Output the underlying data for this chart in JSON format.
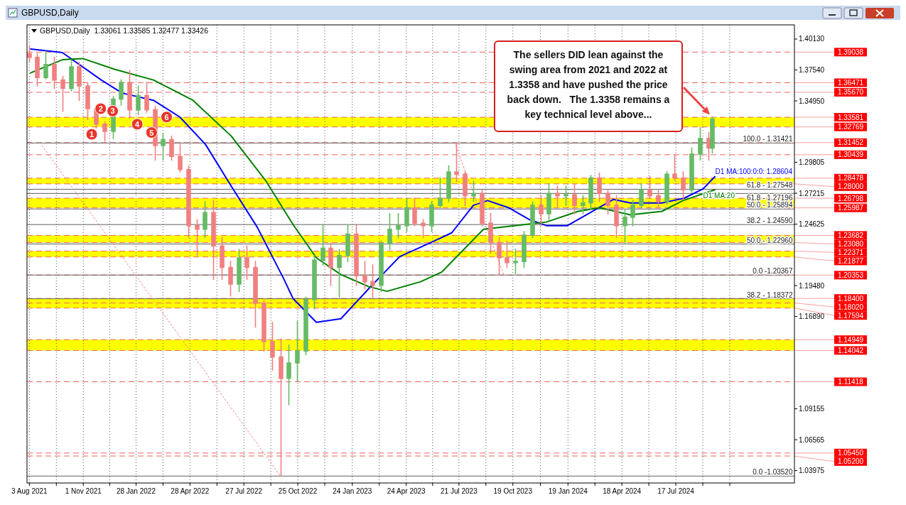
{
  "chart_data": {
    "type": "candlestick",
    "title": "GBPUSD,Daily",
    "subtitle": "GBPUSD,Daily  1.33061 1.33585 1.32477 1.33426",
    "x": [
      "2021-08-02",
      "2021-08-16",
      "2021-08-30",
      "2021-09-13",
      "2021-09-27",
      "2021-10-11",
      "2021-10-25",
      "2021-11-08",
      "2021-11-22",
      "2021-12-06",
      "2021-12-20",
      "2022-01-03",
      "2022-01-17",
      "2022-01-31",
      "2022-02-14",
      "2022-02-28",
      "2022-03-14",
      "2022-03-28",
      "2022-04-11",
      "2022-04-25",
      "2022-05-09",
      "2022-05-23",
      "2022-06-06",
      "2022-06-20",
      "2022-07-04",
      "2022-07-18",
      "2022-08-01",
      "2022-08-15",
      "2022-08-29",
      "2022-09-12",
      "2022-09-26",
      "2022-10-10",
      "2022-10-24",
      "2022-11-07",
      "2022-11-21",
      "2022-12-05",
      "2022-12-19",
      "2023-01-02",
      "2023-01-16",
      "2023-01-30",
      "2023-02-13",
      "2023-02-27",
      "2023-03-13",
      "2023-03-27",
      "2023-04-10",
      "2023-04-24",
      "2023-05-08",
      "2023-05-22",
      "2023-06-05",
      "2023-06-19",
      "2023-07-03",
      "2023-07-17",
      "2023-07-31",
      "2023-08-14",
      "2023-08-28",
      "2023-09-11",
      "2023-09-25",
      "2023-10-09",
      "2023-10-23",
      "2023-11-06",
      "2023-11-20",
      "2023-12-04",
      "2023-12-18",
      "2024-01-01",
      "2024-01-15",
      "2024-01-29",
      "2024-02-12",
      "2024-02-26",
      "2024-03-11",
      "2024-03-25",
      "2024-04-08",
      "2024-04-22",
      "2024-05-06",
      "2024-05-20",
      "2024-06-03",
      "2024-06-17",
      "2024-07-01",
      "2024-07-15",
      "2024-07-29",
      "2024-08-12",
      "2024-08-26",
      "2024-09-09",
      "2024-09-16"
    ],
    "ohlc": [
      [
        1.389,
        1.395,
        1.382,
        1.386
      ],
      [
        1.386,
        1.389,
        1.362,
        1.369
      ],
      [
        1.369,
        1.391,
        1.368,
        1.38
      ],
      [
        1.38,
        1.386,
        1.36,
        1.367
      ],
      [
        1.367,
        1.37,
        1.341,
        1.36
      ],
      [
        1.36,
        1.383,
        1.358,
        1.378
      ],
      [
        1.378,
        1.382,
        1.35,
        1.362
      ],
      [
        1.362,
        1.364,
        1.334,
        1.343
      ],
      [
        1.343,
        1.345,
        1.327,
        1.33
      ],
      [
        1.33,
        1.332,
        1.316,
        1.324
      ],
      [
        1.324,
        1.353,
        1.318,
        1.351
      ],
      [
        1.351,
        1.367,
        1.346,
        1.365
      ],
      [
        1.365,
        1.375,
        1.335,
        1.342
      ],
      [
        1.342,
        1.362,
        1.338,
        1.354
      ],
      [
        1.354,
        1.365,
        1.34,
        1.342
      ],
      [
        1.342,
        1.345,
        1.3,
        1.312
      ],
      [
        1.312,
        1.322,
        1.3,
        1.317
      ],
      [
        1.317,
        1.32,
        1.3,
        1.303
      ],
      [
        1.303,
        1.313,
        1.29,
        1.292
      ],
      [
        1.292,
        1.295,
        1.235,
        1.245
      ],
      [
        1.245,
        1.25,
        1.22,
        1.242
      ],
      [
        1.242,
        1.265,
        1.235,
        1.256
      ],
      [
        1.256,
        1.266,
        1.2,
        1.228
      ],
      [
        1.228,
        1.235,
        1.2,
        1.21
      ],
      [
        1.21,
        1.215,
        1.186,
        1.196
      ],
      [
        1.196,
        1.225,
        1.19,
        1.218
      ],
      [
        1.218,
        1.228,
        1.2,
        1.21
      ],
      [
        1.21,
        1.215,
        1.16,
        1.18
      ],
      [
        1.18,
        1.182,
        1.14,
        1.148
      ],
      [
        1.148,
        1.164,
        1.124,
        1.135
      ],
      [
        1.135,
        1.15,
        1.0352,
        1.117
      ],
      [
        1.117,
        1.145,
        1.095,
        1.13
      ],
      [
        1.13,
        1.165,
        1.115,
        1.14
      ],
      [
        1.14,
        1.185,
        1.137,
        1.183
      ],
      [
        1.183,
        1.22,
        1.175,
        1.216
      ],
      [
        1.216,
        1.245,
        1.212,
        1.226
      ],
      [
        1.226,
        1.23,
        1.195,
        1.21
      ],
      [
        1.21,
        1.225,
        1.185,
        1.22
      ],
      [
        1.22,
        1.245,
        1.215,
        1.238
      ],
      [
        1.238,
        1.245,
        1.195,
        1.203
      ],
      [
        1.203,
        1.215,
        1.192,
        1.198
      ],
      [
        1.198,
        1.212,
        1.185,
        1.195
      ],
      [
        1.195,
        1.232,
        1.19,
        1.23
      ],
      [
        1.23,
        1.255,
        1.225,
        1.242
      ],
      [
        1.242,
        1.255,
        1.235,
        1.245
      ],
      [
        1.245,
        1.268,
        1.24,
        1.26
      ],
      [
        1.26,
        1.268,
        1.245,
        1.247
      ],
      [
        1.247,
        1.25,
        1.235,
        1.245
      ],
      [
        1.245,
        1.265,
        1.24,
        1.262
      ],
      [
        1.262,
        1.285,
        1.26,
        1.268
      ],
      [
        1.268,
        1.295,
        1.265,
        1.29
      ],
      [
        1.29,
        1.3142,
        1.282,
        1.288
      ],
      [
        1.288,
        1.29,
        1.262,
        1.27
      ],
      [
        1.27,
        1.282,
        1.265,
        1.272
      ],
      [
        1.272,
        1.275,
        1.245,
        1.247
      ],
      [
        1.247,
        1.255,
        1.222,
        1.231
      ],
      [
        1.231,
        1.235,
        1.2037,
        1.218
      ],
      [
        1.218,
        1.232,
        1.21,
        1.214
      ],
      [
        1.214,
        1.225,
        1.205,
        1.215
      ],
      [
        1.215,
        1.24,
        1.21,
        1.237
      ],
      [
        1.237,
        1.265,
        1.235,
        1.262
      ],
      [
        1.262,
        1.27,
        1.245,
        1.255
      ],
      [
        1.255,
        1.28,
        1.25,
        1.272
      ],
      [
        1.272,
        1.278,
        1.261,
        1.27
      ],
      [
        1.27,
        1.278,
        1.262,
        1.271
      ],
      [
        1.271,
        1.28,
        1.255,
        1.262
      ],
      [
        1.262,
        1.27,
        1.255,
        1.264
      ],
      [
        1.264,
        1.287,
        1.259,
        1.285
      ],
      [
        1.285,
        1.289,
        1.265,
        1.272
      ],
      [
        1.272,
        1.275,
        1.255,
        1.262
      ],
      [
        1.262,
        1.27,
        1.235,
        1.245
      ],
      [
        1.245,
        1.258,
        1.23,
        1.252
      ],
      [
        1.252,
        1.266,
        1.245,
        1.262
      ],
      [
        1.262,
        1.28,
        1.26,
        1.275
      ],
      [
        1.275,
        1.286,
        1.268,
        1.27
      ],
      [
        1.27,
        1.275,
        1.26,
        1.265
      ],
      [
        1.265,
        1.29,
        1.263,
        1.288
      ],
      [
        1.288,
        1.304,
        1.283,
        1.285
      ],
      [
        1.285,
        1.29,
        1.267,
        1.275
      ],
      [
        1.275,
        1.31,
        1.273,
        1.305
      ],
      [
        1.305,
        1.327,
        1.3,
        1.318
      ],
      [
        1.318,
        1.323,
        1.3,
        1.31
      ],
      [
        1.31,
        1.33585,
        1.306,
        1.33426
      ]
    ],
    "colors": [
      "#f08080",
      "#f08080",
      "#66bb66",
      "#f08080",
      "#f08080",
      "#66bb66",
      "#f08080",
      "#f08080",
      "#f08080",
      "#f08080",
      "#66bb66",
      "#66bb66",
      "#f08080",
      "#66bb66",
      "#f08080",
      "#f08080",
      "#66bb66",
      "#f08080",
      "#f08080",
      "#f08080",
      "#f08080",
      "#66bb66",
      "#f08080",
      "#f08080",
      "#f08080",
      "#66bb66",
      "#f08080",
      "#f08080",
      "#f08080",
      "#f08080",
      "#f08080",
      "#66bb66",
      "#66bb66",
      "#66bb66",
      "#66bb66",
      "#66bb66",
      "#f08080",
      "#66bb66",
      "#66bb66",
      "#f08080",
      "#f08080",
      "#f08080",
      "#66bb66",
      "#66bb66",
      "#66bb66",
      "#66bb66",
      "#f08080",
      "#f08080",
      "#66bb66",
      "#66bb66",
      "#66bb66",
      "#f08080",
      "#f08080",
      "#66bb66",
      "#f08080",
      "#f08080",
      "#f08080",
      "#f08080",
      "#66bb66",
      "#66bb66",
      "#66bb66",
      "#f08080",
      "#66bb66",
      "#f08080",
      "#66bb66",
      "#f08080",
      "#66bb66",
      "#66bb66",
      "#f08080",
      "#f08080",
      "#f08080",
      "#66bb66",
      "#66bb66",
      "#66bb66",
      "#f08080",
      "#f08080",
      "#66bb66",
      "#f08080",
      "#f08080",
      "#66bb66",
      "#66bb66",
      "#f08080",
      "#66bb66"
    ],
    "series": [
      {
        "type": "line",
        "name": "D1 MA:100:0:0: 1.28604",
        "color": "#0000ff",
        "x": [
          "2021-08-05",
          "2021-09-27",
          "2021-12-01",
          "2022-01-05",
          "2022-02-26",
          "2022-04-11",
          "2022-05-24",
          "2022-07-06",
          "2022-08-18",
          "2022-10-01",
          "2022-10-17",
          "2022-11-25",
          "2023-01-05",
          "2023-02-20",
          "2023-04-13",
          "2023-06-05",
          "2023-07-09",
          "2023-08-14",
          "2023-09-07",
          "2023-10-12",
          "2023-11-16",
          "2023-12-14",
          "2024-01-18",
          "2024-02-22",
          "2024-04-04",
          "2024-05-02",
          "2024-06-24",
          "2024-07-31",
          "2024-09-01",
          "2024-09-20"
        ],
        "values": [
          1.393,
          1.39,
          1.367,
          1.356,
          1.35,
          1.336,
          1.313,
          1.278,
          1.244,
          1.201,
          1.184,
          1.164,
          1.167,
          1.192,
          1.219,
          1.231,
          1.239,
          1.262,
          1.266,
          1.26,
          1.25,
          1.245,
          1.245,
          1.255,
          1.267,
          1.264,
          1.264,
          1.268,
          1.276,
          1.286
        ]
      },
      {
        "type": "line",
        "name": "D1 MA:20",
        "color": "#008000",
        "x": [
          "2021-08-05",
          "2021-09-27",
          "2021-10-31",
          "2021-12-23",
          "2022-02-26",
          "2022-05-03",
          "2022-07-06",
          "2022-09-01",
          "2022-10-17",
          "2022-11-25",
          "2023-01-05",
          "2023-02-20",
          "2023-03-23",
          "2023-05-18",
          "2023-06-22",
          "2023-07-27",
          "2023-08-31",
          "2023-10-22",
          "2023-12-14",
          "2024-02-05",
          "2024-03-12",
          "2024-05-02",
          "2024-06-24",
          "2024-07-29",
          "2024-09-20"
        ],
        "values": [
          1.373,
          1.384,
          1.385,
          1.376,
          1.367,
          1.35,
          1.32,
          1.283,
          1.246,
          1.218,
          1.204,
          1.194,
          1.19,
          1.198,
          1.206,
          1.224,
          1.242,
          1.245,
          1.248,
          1.257,
          1.26,
          1.254,
          1.257,
          1.266,
          1.275
        ]
      },
      {
        "type": "line",
        "color": "#f08080",
        "line_style": "dotted",
        "x": [
          "2021-08-24",
          "2022-09-26"
        ],
        "values": [
          1.312,
          1.0352
        ]
      },
      {
        "type": "line",
        "color": "#f08080",
        "line_style": "dotted",
        "x": [
          "2023-07-14",
          "2023-10-04"
        ],
        "values": [
          1.3142,
          1.2037
        ]
      }
    ],
    "xlim": [
      "2021-07-30",
      "2025-01-31"
    ],
    "xticks": [
      {
        "value": "2021-08-03",
        "label": "3 Aug 2021"
      },
      {
        "value": "2021-09-17",
        "label": null
      },
      {
        "value": "2021-11-01",
        "label": "1 Nov 2021"
      },
      {
        "value": "2021-12-15",
        "label": null
      },
      {
        "value": "2022-01-28",
        "label": "28 Jan 2022"
      },
      {
        "value": "2022-03-14",
        "label": null
      },
      {
        "value": "2022-04-28",
        "label": "28 Apr 2022"
      },
      {
        "value": "2022-06-12",
        "label": null
      },
      {
        "value": "2022-07-27",
        "label": "27 Jul 2022"
      },
      {
        "value": "2022-09-10",
        "label": null
      },
      {
        "value": "2022-10-25",
        "label": "25 Oct 2022"
      },
      {
        "value": "2022-12-09",
        "label": null
      },
      {
        "value": "2023-01-24",
        "label": "24 Jan 2023"
      },
      {
        "value": "2023-03-10",
        "label": null
      },
      {
        "value": "2023-04-24",
        "label": "24 Apr 2023"
      },
      {
        "value": "2023-06-07",
        "label": null
      },
      {
        "value": "2023-07-21",
        "label": "21 Jul 2023"
      },
      {
        "value": "2023-09-04",
        "label": null
      },
      {
        "value": "2023-10-19",
        "label": "19 Oct 2023"
      },
      {
        "value": "2023-12-04",
        "label": null
      },
      {
        "value": "2024-01-19",
        "label": "19 Jan 2024"
      },
      {
        "value": "2024-03-04",
        "label": null
      },
      {
        "value": "2024-04-18",
        "label": "18 Apr 2024"
      },
      {
        "value": "2024-06-02",
        "label": null
      },
      {
        "value": "2024-07-17",
        "label": "17 Jul 2024"
      },
      {
        "value": "2024-08-31",
        "label": null
      },
      {
        "value": "2024-10-15",
        "label": null
      }
    ],
    "ylim": [
      1.0294,
      1.4132
    ],
    "yticks": [
      {
        "value": 1.4013,
        "label": "1.40130"
      },
      {
        "value": 1.3754,
        "label": "1.37540"
      },
      {
        "value": 1.3495,
        "label": "1.34950"
      },
      {
        "value": 1.29805,
        "label": "1.29805"
      },
      {
        "value": 1.27215,
        "label": "1.27215"
      },
      {
        "value": 1.24625,
        "label": "1.24625"
      },
      {
        "value": 1.1948,
        "label": "1.19480"
      },
      {
        "value": 1.1689,
        "label": "1.16890"
      },
      {
        "value": 1.09155,
        "label": "1.09155"
      },
      {
        "value": 1.06565,
        "label": "1.06565"
      },
      {
        "value": 1.03975,
        "label": "1.03975"
      }
    ],
    "grid": "x",
    "bands": [
      {
        "axis": "y",
        "from": 1.32769,
        "to": 1.33581,
        "color": "#ffff00"
      },
      {
        "axis": "y",
        "from": 1.28,
        "to": 1.28478,
        "color": "#ffff00"
      },
      {
        "axis": "y",
        "from": 1.25987,
        "to": 1.26798,
        "color": "#ffff00"
      },
      {
        "axis": "y",
        "from": 1.2308,
        "to": 1.23682,
        "color": "#ffff00"
      },
      {
        "axis": "y",
        "from": 1.21877,
        "to": 1.22371,
        "color": "#ffff00"
      },
      {
        "axis": "y",
        "from": 1.17594,
        "to": 1.184,
        "color": "#ffff00"
      },
      {
        "axis": "y",
        "from": 1.14042,
        "to": 1.14949,
        "color": "#ffff00"
      }
    ],
    "ref_lines": [
      {
        "axis": "y",
        "value": 1.39038,
        "label": "1.39038",
        "color": "#f06060",
        "line_style": "dashed"
      },
      {
        "axis": "y",
        "value": 1.36471,
        "label": "1.36471",
        "color": "#f06060",
        "line_style": "dashed"
      },
      {
        "axis": "y",
        "value": 1.3567,
        "label": "1.35670",
        "color": "#f06060",
        "line_style": "dashed"
      },
      {
        "axis": "y",
        "value": 1.33581,
        "label": "1.33581",
        "color": "#f06060",
        "line_style": "dashed"
      },
      {
        "axis": "y",
        "value": 1.32769,
        "label": "1.32769",
        "color": "#f06060",
        "line_style": "dashed"
      },
      {
        "axis": "y",
        "value": 1.31452,
        "label": "1.31452",
        "color": "#f06060",
        "line_style": "dashed"
      },
      {
        "axis": "y",
        "value": 1.30439,
        "label": "1.30439",
        "color": "#f06060",
        "line_style": "dashed"
      },
      {
        "axis": "y",
        "value": 1.28478,
        "label": "1.28478",
        "color": "#f06060",
        "line_style": "dashed"
      },
      {
        "axis": "y",
        "value": 1.28,
        "label": "1.28000",
        "color": "#f06060",
        "line_style": "dashed"
      },
      {
        "axis": "y",
        "value": 1.26798,
        "label": "1.26798",
        "color": "#f06060",
        "line_style": "dashed"
      },
      {
        "axis": "y",
        "value": 1.25987,
        "label": "1.25987",
        "color": "#f06060",
        "line_style": "dashed"
      },
      {
        "axis": "y",
        "value": 1.23682,
        "label": "1.23682",
        "color": "#f06060",
        "line_style": "dashed"
      },
      {
        "axis": "y",
        "value": 1.2308,
        "label": "1.23080",
        "color": "#f06060",
        "line_style": "dashed"
      },
      {
        "axis": "y",
        "value": 1.22371,
        "label": "1.22371",
        "color": "#f06060",
        "line_style": "dashed"
      },
      {
        "axis": "y",
        "value": 1.21877,
        "label": "1.21877",
        "color": "#f06060",
        "line_style": "dashed"
      },
      {
        "axis": "y",
        "value": 1.20353,
        "label": "1.20353",
        "color": "#f06060",
        "line_style": "dashed"
      },
      {
        "axis": "y",
        "value": 1.184,
        "label": "1.18400",
        "color": "#f06060",
        "line_style": "dashed"
      },
      {
        "axis": "y",
        "value": 1.1802,
        "label": "1.18020",
        "color": "#f06060",
        "line_style": "dashed"
      },
      {
        "axis": "y",
        "value": 1.17594,
        "label": "1.17594",
        "color": "#f06060",
        "line_style": "dashed"
      },
      {
        "axis": "y",
        "value": 1.14949,
        "label": "1.14949",
        "color": "#f06060",
        "line_style": "dashed"
      },
      {
        "axis": "y",
        "value": 1.14042,
        "label": "1.14042",
        "color": "#f06060",
        "line_style": "dashed"
      },
      {
        "axis": "y",
        "value": 1.11418,
        "label": "1.11418",
        "color": "#f06060",
        "line_style": "dashed"
      },
      {
        "axis": "y",
        "value": 1.0545,
        "label": "1.05450",
        "color": "#f06060",
        "line_style": "dashed"
      },
      {
        "axis": "y",
        "value": 1.052,
        "label": "1.05200",
        "color": "#f06060",
        "line_style": "dashed"
      },
      {
        "axis": "y",
        "value": 1.31421,
        "color": "#606060",
        "line_style": "solid"
      },
      {
        "axis": "y",
        "value": 1.27548,
        "color": "#606060",
        "line_style": "solid"
      },
      {
        "axis": "y",
        "value": 1.27196,
        "color": "#606060",
        "line_style": "solid"
      },
      {
        "axis": "y",
        "value": 1.25894,
        "color": "#606060",
        "line_style": "solid"
      },
      {
        "axis": "y",
        "value": 1.2459,
        "color": "#606060",
        "line_style": "solid"
      },
      {
        "axis": "y",
        "value": 1.2296,
        "color": "#606060",
        "line_style": "solid"
      },
      {
        "axis": "y",
        "value": 1.20367,
        "color": "#606060",
        "line_style": "solid"
      },
      {
        "axis": "y",
        "value": 1.18372,
        "color": "#606060",
        "line_style": "solid"
      },
      {
        "axis": "y",
        "value": 1.0352,
        "color": "#606060",
        "line_style": "solid"
      }
    ],
    "annotations": [
      "The sellers DID lean against the swing area from 2021 and 2022 at 1.3358 and have pushed the price back down.   The 1.3358 remains a key technical level above...",
      {
        "text": "1",
        "x": "2021-11-15",
        "y": 1.3215
      },
      {
        "text": "2",
        "x": "2021-11-30",
        "y": 1.343
      },
      {
        "text": "3",
        "x": "2021-12-20",
        "y": 1.341
      },
      {
        "text": "4",
        "x": "2022-01-30",
        "y": 1.33
      },
      {
        "text": "5",
        "x": "2022-02-23",
        "y": 1.323
      },
      {
        "text": "6",
        "x": "2022-03-20",
        "y": 1.336
      },
      {
        "text": "100.0 - 1.31421",
        "x": "2025-01-28",
        "y": 1.31421
      },
      {
        "text": "61.8 - 1.27548",
        "x": "2025-01-28",
        "y": 1.27548
      },
      {
        "text": "61.8 - 1.27196",
        "x": "2025-01-28",
        "y": 1.27196
      },
      {
        "text": "50.0 - 1.25894",
        "x": "2025-01-28",
        "y": 1.25894
      },
      {
        "text": "38.2 - 1.24590",
        "x": "2025-01-28",
        "y": 1.2459
      },
      {
        "text": "50.0 - 1.22960",
        "x": "2025-01-28",
        "y": 1.2296
      },
      {
        "text": "0.0 -1.20367",
        "x": "2025-01-28",
        "y": 1.20367
      },
      {
        "text": "38.2 - 1.18372",
        "x": "2025-01-28",
        "y": 1.18372
      },
      {
        "text": "0.0 -1.03520",
        "x": "2025-01-28",
        "y": 1.0352
      }
    ]
  }
}
